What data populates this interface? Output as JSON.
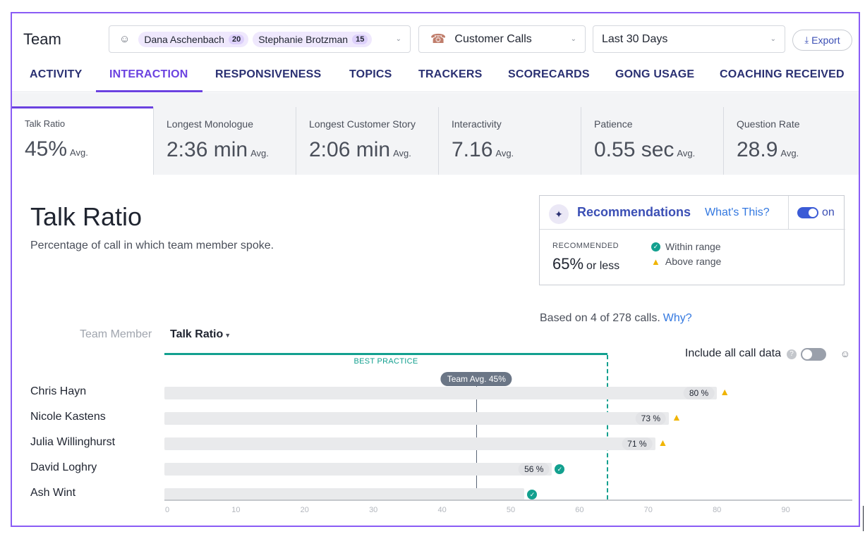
{
  "header": {
    "title": "Team",
    "members": [
      {
        "name": "Dana Aschenbach",
        "count": "20"
      },
      {
        "name": "Stephanie Brotzman",
        "count": "15"
      }
    ],
    "call_type": "Customer Calls",
    "date_range": "Last 30 Days",
    "export_label": "Export"
  },
  "tabs": [
    {
      "label": "ACTIVITY"
    },
    {
      "label": "INTERACTION",
      "active": true
    },
    {
      "label": "RESPONSIVENESS"
    },
    {
      "label": "TOPICS"
    },
    {
      "label": "TRACKERS"
    },
    {
      "label": "SCORECARDS"
    },
    {
      "label": "GONG USAGE"
    },
    {
      "label": "COACHING RECEIVED"
    }
  ],
  "metrics": [
    {
      "label": "Talk Ratio",
      "value": "45%",
      "unit": "Avg."
    },
    {
      "label": "Longest Monologue",
      "value": "2:36 min",
      "unit": "Avg."
    },
    {
      "label": "Longest Customer Story",
      "value": "2:06 min",
      "unit": "Avg."
    },
    {
      "label": "Interactivity",
      "value": "7.16",
      "unit": "Avg."
    },
    {
      "label": "Patience",
      "value": "0.55 sec",
      "unit": "Avg."
    },
    {
      "label": "Question Rate",
      "value": "28.9",
      "unit": "Avg."
    }
  ],
  "section": {
    "title": "Talk Ratio",
    "subtitle": "Percentage of call in which team member spoke."
  },
  "recommendations": {
    "title": "Recommendations",
    "link": "What's This?",
    "toggle_label": "on",
    "recommended_label": "RECOMMENDED",
    "recommended_value": "65%",
    "recommended_suffix": "or less",
    "legend_within": "Within range",
    "legend_above": "Above range"
  },
  "based_on": {
    "text": "Based on 4 of 278 calls.",
    "link": "Why?"
  },
  "columns": {
    "member": "Team Member",
    "ratio": "Talk Ratio"
  },
  "chart_data": {
    "type": "bar",
    "orientation": "horizontal",
    "categories": [
      "Chris Hayn",
      "Nicole Kastens",
      "Julia Willinghurst",
      "David Loghry",
      "Ash Wint"
    ],
    "values": [
      80,
      73,
      71,
      56,
      52
    ],
    "value_labels": [
      "80 %",
      "73 %",
      "71 %",
      "56 %",
      ""
    ],
    "status": [
      "above",
      "above",
      "above",
      "within",
      "within"
    ],
    "best_practice_label": "BEST PRACTICE",
    "best_practice_max": 65,
    "team_avg": 45,
    "team_avg_label": "Team Avg. 45%",
    "x_ticks": [
      "0",
      "10",
      "20",
      "30",
      "40",
      "50",
      "60",
      "70",
      "80",
      "90"
    ],
    "xlim": [
      0,
      100
    ],
    "title": "",
    "xlabel": "",
    "ylabel": "",
    "colors": {
      "bar": "#e9eaec",
      "best_practice": "#13a08f",
      "avg": "#6b7686",
      "within": "#13a08f",
      "above": "#f0b400"
    }
  },
  "footer": {
    "include_label": "Include all call data"
  }
}
